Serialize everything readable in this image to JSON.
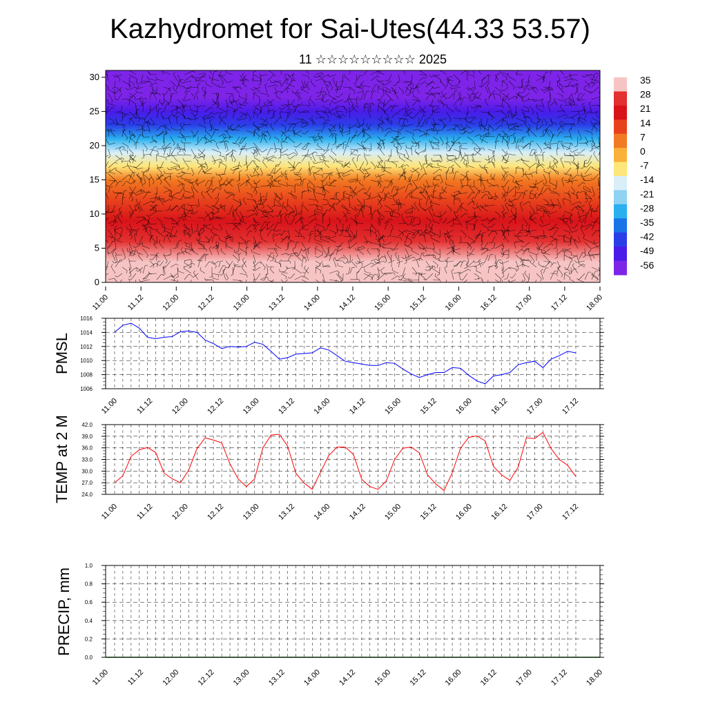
{
  "title": "Kazhydromet for Sai-Utes(44.33 53.57)",
  "subtitle": "11 ☆☆☆☆☆☆☆☆☆ 2025",
  "colors": {
    "pmsl_line": "#0000ff",
    "temp_line": "#ff0000",
    "precip_line": "#006400",
    "wind_barbs": "#000000"
  },
  "chart_data": [
    {
      "id": "cross_section",
      "type": "heatmap",
      "xlabel": "",
      "ylabel": "",
      "x_tick_labels": [
        "11.00",
        "11.12",
        "12.00",
        "12.12",
        "13.00",
        "13.12",
        "14.00",
        "14.12",
        "15.00",
        "15.12",
        "16.00",
        "16.12",
        "17.00",
        "17.12",
        "18.00"
      ],
      "y_ticks": [
        0,
        5,
        10,
        15,
        20,
        25,
        30
      ],
      "ylim": [
        0,
        31
      ],
      "colorbar": {
        "labels": [
          "35",
          "28",
          "21",
          "14",
          "7",
          "0",
          "-7",
          "-14",
          "-21",
          "-28",
          "-35",
          "-42",
          "-49",
          "-56"
        ],
        "colors": [
          "#f7c4c4",
          "#e33030",
          "#d8131a",
          "#e8421c",
          "#f27a22",
          "#f9b13a",
          "#fde67a",
          "#d8eef9",
          "#8fd2f2",
          "#2ab0ef",
          "#1a74e9",
          "#2a3ee8",
          "#4a1be8",
          "#7e24e8"
        ]
      },
      "temperature_profile_by_height": [
        [
          0,
          33
        ],
        [
          3,
          30
        ],
        [
          6,
          26
        ],
        [
          9,
          20
        ],
        [
          12,
          10
        ],
        [
          15,
          2
        ],
        [
          17,
          -7
        ],
        [
          19,
          -20
        ],
        [
          21,
          -30
        ],
        [
          23,
          -42
        ],
        [
          25,
          -52
        ],
        [
          27,
          -58
        ],
        [
          29,
          -62
        ],
        [
          31,
          -65
        ]
      ],
      "overlay": "wind barbs"
    },
    {
      "id": "pmsl",
      "type": "line",
      "ylabel": "PMSL",
      "ylim": [
        1006,
        1016
      ],
      "y_ticks": [
        "1006",
        "1008",
        "1010",
        "1012",
        "1014",
        "1016"
      ],
      "x_tick_labels": [
        "11.00",
        "11.12",
        "12.00",
        "12.12",
        "13.00",
        "13.12",
        "14.00",
        "14.12",
        "15.00",
        "15.12",
        "16.00",
        "16.12",
        "17.00",
        "17.12",
        "18.00"
      ],
      "values": [
        1014.0,
        1015.0,
        1015.3,
        1014.6,
        1013.3,
        1013.1,
        1013.3,
        1013.4,
        1014.1,
        1014.2,
        1014.0,
        1012.9,
        1012.4,
        1011.7,
        1012.0,
        1011.9,
        1012.0,
        1012.6,
        1012.3,
        1011.3,
        1010.2,
        1010.4,
        1010.9,
        1011.0,
        1011.1,
        1011.8,
        1011.5,
        1010.7,
        1009.9,
        1009.7,
        1009.5,
        1009.3,
        1009.3,
        1009.7,
        1009.6,
        1008.8,
        1008.1,
        1007.6,
        1008.0,
        1008.3,
        1008.3,
        1009.0,
        1008.9,
        1007.9,
        1007.1,
        1006.7,
        1007.8,
        1008.0,
        1008.3,
        1009.4,
        1009.7,
        1009.9,
        1009.0,
        1010.2,
        1010.7,
        1011.3,
        1011.1
      ]
    },
    {
      "id": "temp2m",
      "type": "line",
      "ylabel": "TEMP at 2 M",
      "ylim": [
        24.0,
        42.0
      ],
      "y_ticks": [
        "24.0",
        "27.0",
        "30.0",
        "33.0",
        "36.0",
        "39.0",
        "42.0"
      ],
      "x_tick_labels": [
        "11.00",
        "11.12",
        "12.00",
        "12.12",
        "13.00",
        "13.12",
        "14.00",
        "14.12",
        "15.00",
        "15.12",
        "16.00",
        "16.12",
        "17.00",
        "17.12",
        "18.00"
      ],
      "values": [
        27.0,
        28.8,
        33.8,
        35.5,
        36.1,
        34.8,
        29.5,
        28.0,
        27.0,
        30.3,
        35.8,
        38.6,
        38.0,
        37.3,
        31.9,
        28.0,
        26.0,
        28.0,
        36.0,
        39.3,
        39.5,
        36.5,
        29.5,
        26.9,
        25.3,
        29.7,
        34.0,
        36.2,
        36.2,
        34.3,
        27.9,
        26.0,
        25.3,
        27.5,
        33.0,
        35.9,
        36.2,
        34.7,
        29.0,
        26.7,
        25.0,
        29.6,
        35.9,
        38.7,
        39.1,
        37.8,
        31.2,
        29.0,
        27.6,
        31.0,
        38.6,
        38.4,
        40.0,
        35.8,
        33.0,
        31.5,
        28.6
      ]
    },
    {
      "id": "precip",
      "type": "line",
      "ylabel": "PRECIP, mm",
      "ylim": [
        0.0,
        1.0
      ],
      "y_ticks": [
        "0.0",
        "0.2",
        "0.4",
        "0.6",
        "0.8",
        "1.0"
      ],
      "x_tick_labels": [
        "11.00",
        "11.12",
        "12.00",
        "12.12",
        "13.00",
        "13.12",
        "14.00",
        "14.12",
        "15.00",
        "15.12",
        "16.00",
        "16.12",
        "17.00",
        "17.12",
        "18.00"
      ],
      "values": [
        0,
        0
      ]
    }
  ]
}
